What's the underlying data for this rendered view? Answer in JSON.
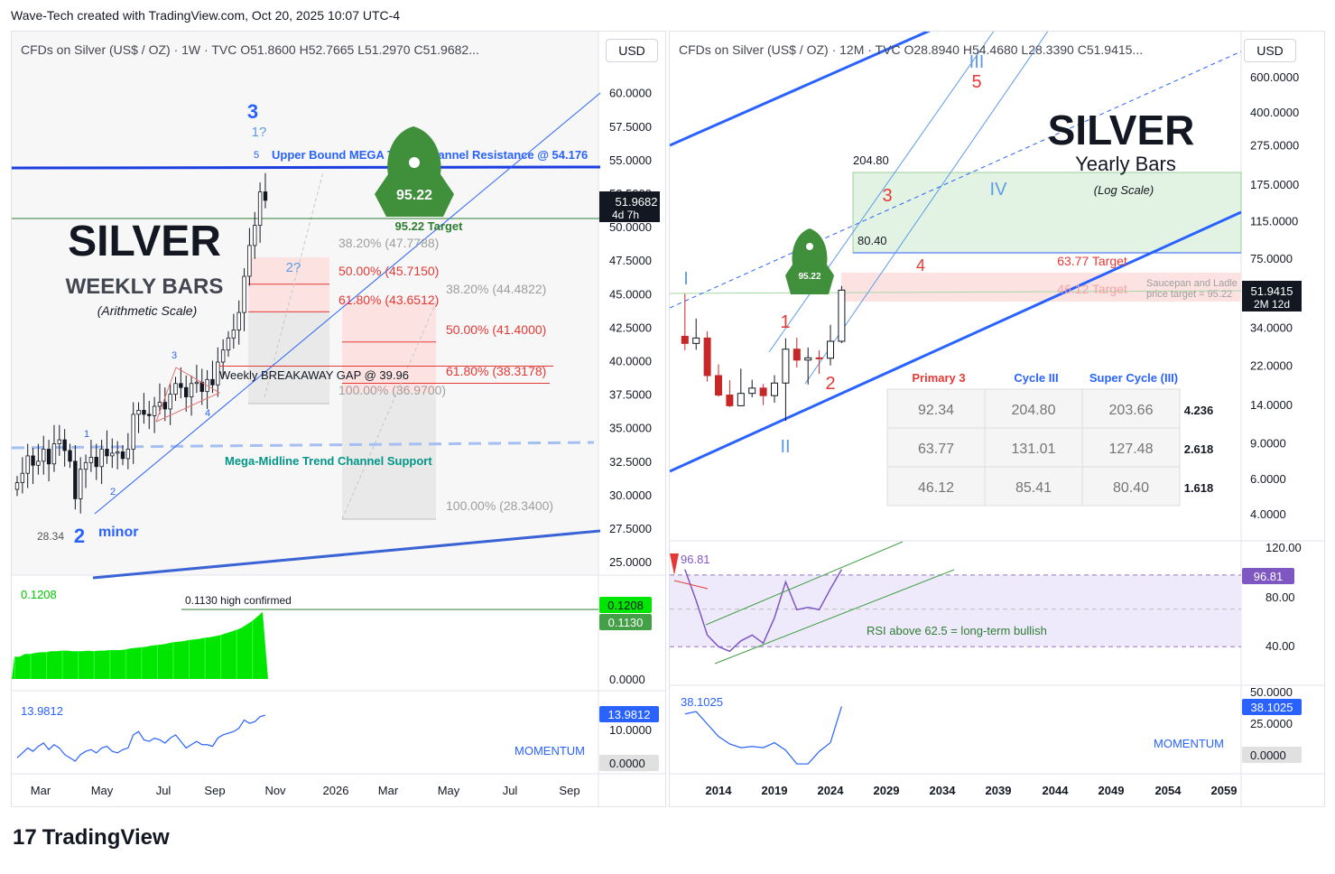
{
  "header": {
    "attribution": "Wave-Tech created with TradingView.com, Oct 20, 2025 10:07 UTC-4"
  },
  "footer": {
    "brand": "TradingView",
    "logo_glyph": "17"
  },
  "colors": {
    "up": "#089981",
    "blue": "#2962ff",
    "trend_blue": "#3a63d6",
    "green": "#2e7d32",
    "red": "#e53935",
    "wave_light": "#5b9be8"
  },
  "chart_data": [
    {
      "panel": "left",
      "type": "candlestick",
      "symbol_line": "CFDs on Silver (US$ / OZ) · 1W · TVC O51.8600 H52.7665 L51.2970 C51.9682...",
      "currency_button": "USD",
      "title": "SILVER",
      "subtitle": "WEEKLY BARS",
      "scale_note": "(Arithmetic Scale)",
      "y_ticks": [
        "60.0000",
        "57.5000",
        "55.0000",
        "52.5000",
        "50.0000",
        "47.5000",
        "45.0000",
        "42.5000",
        "40.0000",
        "37.5000",
        "35.0000",
        "32.5000",
        "30.0000",
        "27.5000",
        "25.0000"
      ],
      "ylim": [
        24,
        62
      ],
      "x_ticks": [
        "Mar",
        "May",
        "Jul",
        "Sep",
        "Nov",
        "2026",
        "Mar",
        "May",
        "Jul",
        "Sep"
      ],
      "last_price": "51.9682",
      "last_price_countdown": "4d 7h",
      "annotations": {
        "wave3": "3",
        "wave1q": "1?",
        "wave5": "5",
        "upper_bound": "Upper Bound MEGA Trend Channel Resistance @ 54.176",
        "target_value": "95.22",
        "target_label": "95.22 Target",
        "wave2q": "2?",
        "fib_a": [
          "38.20% (47.7788)",
          "50.00% (45.7150)",
          "61.80% (43.6512)",
          "100.00% (36.9700)"
        ],
        "fib_b": [
          "38.20% (44.4822)",
          "50.00% (41.4000)",
          "61.80% (38.3178)",
          "100.00% (28.3400)"
        ],
        "gap": "Weekly BREAKAWAY GAP @ 39.96",
        "midline": "Mega-Midline Trend Channel Support",
        "low_value": "28.34",
        "wave2": "2",
        "minor": "minor",
        "wave_small": [
          "1",
          "2",
          "3",
          "4"
        ]
      },
      "closes": [
        30.9,
        31.6,
        32.9,
        32.2,
        32.5,
        33.4,
        32.3,
        33.8,
        34.1,
        33.3,
        32.5,
        29.7,
        31.9,
        32.4,
        32.8,
        32.1,
        33.4,
        32.9,
        33.1,
        33.2,
        32.7,
        33.4,
        36.0,
        36.3,
        36.0,
        35.9,
        36.6,
        36.9,
        36.4,
        37.5,
        38.3,
        38.0,
        37.3,
        38.3,
        38.4,
        37.7,
        38.6,
        38.2,
        39.9,
        40.8,
        41.7,
        42.3,
        43.6,
        46.3,
        48.6,
        50.1,
        52.6,
        51.97
      ],
      "indicator_1": {
        "value": "0.1208",
        "level_value": "0.1130",
        "note": "0.1130 high confirmed",
        "y_ticks": [
          "0.0000"
        ],
        "values": [
          0.04,
          0.04,
          0.045,
          0.045,
          0.047,
          0.048,
          0.048,
          0.05,
          0.05,
          0.051,
          0.051,
          0.05,
          0.05,
          0.05,
          0.051,
          0.05,
          0.051,
          0.051,
          0.052,
          0.052,
          0.052,
          0.053,
          0.055,
          0.056,
          0.057,
          0.058,
          0.06,
          0.061,
          0.062,
          0.064,
          0.066,
          0.067,
          0.068,
          0.07,
          0.071,
          0.072,
          0.074,
          0.075,
          0.077,
          0.079,
          0.082,
          0.085,
          0.088,
          0.092,
          0.098,
          0.104,
          0.112,
          0.1208
        ]
      },
      "indicator_2": {
        "name": "MOMENTUM",
        "value": "13.9812",
        "y_ticks": [
          "10.0000",
          "0.0000"
        ],
        "values": [
          1,
          2.5,
          4,
          3,
          4.5,
          5.5,
          3.5,
          5,
          4,
          2,
          1,
          0,
          2,
          3,
          3.5,
          2.5,
          4,
          4.5,
          3,
          2.5,
          3.5,
          4,
          8,
          9,
          6.5,
          6,
          7,
          6.5,
          5.5,
          7,
          8,
          6,
          4,
          5,
          6,
          5,
          5,
          4.5,
          7,
          8,
          8.5,
          9,
          10,
          12.5,
          11.5,
          12,
          13.5,
          13.98
        ]
      }
    },
    {
      "panel": "right",
      "type": "candlestick",
      "symbol_line": "CFDs on Silver (US$ / OZ) · 12M · TVC O28.8940 H54.4680 L28.3390 C51.9415...",
      "currency_button": "USD",
      "title": "SILVER",
      "subtitle": "Yearly Bars",
      "scale_note": "(Log Scale)",
      "log_scale": true,
      "y_ticks": [
        "600.0000",
        "400.0000",
        "275.0000",
        "175.0000",
        "115.0000",
        "75.0000",
        "45.0000",
        "34.0000",
        "22.0000",
        "14.0000",
        "9.0000",
        "6.0000",
        "4.0000"
      ],
      "x_ticks": [
        "2014",
        "2019",
        "2024",
        "2029",
        "2034",
        "2039",
        "2044",
        "2049",
        "2054",
        "2059"
      ],
      "last_price": "51.9415",
      "last_price_countdown": "2M 12d",
      "annotations": {
        "wave_III": "III",
        "wave_5": "5",
        "wave_3": "3",
        "wave_IV": "IV",
        "wave_4": "4",
        "wave_I": "I",
        "wave_1": "1",
        "wave_2": "2",
        "wave_II": "II",
        "level_high": "204.80",
        "level_mid": "80.40",
        "target_63": "63.77 Target",
        "target_46": "46.12 Target",
        "saucepan": "Saucepan and Ladle",
        "saucepan_target": "price target = 95.22",
        "rocket_value": "95.22"
      },
      "fib_table": {
        "headers": [
          "Primary 3",
          "Cycle III",
          "Super Cycle (III)"
        ],
        "rows": [
          [
            "92.34",
            "204.80",
            "203.66"
          ],
          [
            "63.77",
            "131.01",
            "127.48"
          ],
          [
            "46.12",
            "85.41",
            "80.40"
          ]
        ],
        "ratios": [
          "4.236",
          "2.618",
          "1.618"
        ]
      },
      "bars": [
        {
          "year": 2011,
          "o": 30.6,
          "h": 49.8,
          "l": 26.1,
          "c": 28.2
        },
        {
          "year": 2012,
          "o": 28.2,
          "h": 37.5,
          "l": 26.2,
          "c": 30.0
        },
        {
          "year": 2013,
          "o": 30.0,
          "h": 32.4,
          "l": 18.2,
          "c": 19.5
        },
        {
          "year": 2014,
          "o": 19.5,
          "h": 22.2,
          "l": 15.3,
          "c": 15.6
        },
        {
          "year": 2015,
          "o": 15.6,
          "h": 18.5,
          "l": 13.6,
          "c": 13.8
        },
        {
          "year": 2016,
          "o": 13.8,
          "h": 21.1,
          "l": 13.7,
          "c": 15.9
        },
        {
          "year": 2017,
          "o": 15.9,
          "h": 18.6,
          "l": 15.2,
          "c": 16.9
        },
        {
          "year": 2018,
          "o": 16.9,
          "h": 17.7,
          "l": 13.9,
          "c": 15.5
        },
        {
          "year": 2019,
          "o": 15.5,
          "h": 19.6,
          "l": 14.3,
          "c": 17.9
        },
        {
          "year": 2020,
          "o": 17.9,
          "h": 29.9,
          "l": 11.6,
          "c": 26.4
        },
        {
          "year": 2021,
          "o": 26.4,
          "h": 30.1,
          "l": 21.4,
          "c": 23.3
        },
        {
          "year": 2022,
          "o": 23.3,
          "h": 26.9,
          "l": 17.6,
          "c": 23.9
        },
        {
          "year": 2023,
          "o": 23.9,
          "h": 26.1,
          "l": 19.9,
          "c": 23.8
        },
        {
          "year": 2024,
          "o": 23.8,
          "h": 34.9,
          "l": 21.9,
          "c": 28.9
        },
        {
          "year": 2025,
          "o": 28.9,
          "h": 54.5,
          "l": 28.3,
          "c": 51.94
        }
      ],
      "rsi": {
        "value": "96.81",
        "note": "RSI above 62.5 = long-term bullish",
        "y_ticks": [
          "120.00",
          "80.00",
          "40.00"
        ],
        "values": [
          96.81,
          70,
          40,
          30,
          26,
          35,
          40,
          33,
          55,
          86,
          62,
          64,
          62,
          80,
          96.81
        ]
      },
      "momentum": {
        "name": "MOMENTUM",
        "value": "38.1025",
        "y_ticks": [
          "50.0000",
          "25.0000",
          "0.0000"
        ],
        "values": [
          32,
          34,
          24,
          14,
          8,
          5,
          6,
          5,
          9,
          3,
          -8,
          -8,
          2,
          9,
          38.1
        ]
      }
    }
  ]
}
